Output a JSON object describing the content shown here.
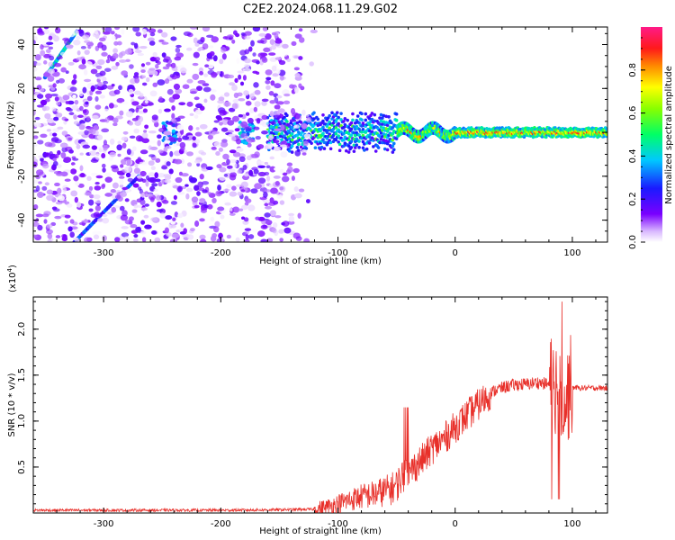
{
  "title": "C2E2.2024.068.11.29.G02",
  "chart_data": [
    {
      "type": "heatmap",
      "title": "C2E2.2024.068.11.29.G02",
      "xlabel": "Height of straight line (km)",
      "ylabel": "Frequency (Hz)",
      "xlim": [
        -360,
        130
      ],
      "ylim": [
        -50,
        48
      ],
      "x_ticks": [
        -300,
        -200,
        -100,
        0,
        100
      ],
      "y_ticks": [
        -40,
        -20,
        0,
        20,
        40
      ],
      "colorbar": {
        "label": "Normalized spectral amplitude",
        "range": [
          0.0,
          1.0
        ],
        "ticks": [
          0.0,
          0.2,
          0.4,
          0.6,
          0.8
        ],
        "colormap": "rainbow (white-purple-blue-cyan-green-yellow-red-magenta)"
      },
      "features": [
        {
          "kind": "carrier-line",
          "freq_hz": 0,
          "x_from": -160,
          "x_to": 130,
          "amplitude": 0.85
        },
        {
          "kind": "diagonal-streak",
          "x_from": -350,
          "x_to": -323,
          "freq_from": 25,
          "freq_to": 46,
          "amplitude": 0.4
        },
        {
          "kind": "diagonal-streak",
          "x_from": -325,
          "x_to": -270,
          "freq_from": -50,
          "freq_to": -20,
          "amplitude": 0.25
        },
        {
          "kind": "blob",
          "x": -243,
          "freq_hz": 0,
          "amplitude": 0.3
        },
        {
          "kind": "blob",
          "x": -178,
          "freq_hz": 0,
          "amplitude": 0.35
        },
        {
          "kind": "noise-field",
          "x_from": -360,
          "x_to": -120,
          "freq_from": -50,
          "freq_to": 48,
          "amplitude": 0.15
        }
      ]
    },
    {
      "type": "line",
      "title": "",
      "xlabel": "Height of straight line (km)",
      "ylabel": "SNR (10 * v/v)",
      "scale_label": "(x10",
      "scale_exponent": "4",
      "scale_suffix": ")",
      "xlim": [
        -360,
        130
      ],
      "ylim": [
        0,
        2.35
      ],
      "x_ticks": [
        -300,
        -200,
        -100,
        0,
        100
      ],
      "y_ticks": [
        0.5,
        1.0,
        1.5,
        2.0
      ],
      "y_ticklabels": [
        "0.5",
        "1.0",
        "1.5",
        "2.0"
      ],
      "series": [
        {
          "color": "#e8302a",
          "x": [
            -360,
            -300,
            -250,
            -200,
            -150,
            -120,
            -110,
            -100,
            -90,
            -80,
            -70,
            -60,
            -55,
            -50,
            -45,
            -40,
            -35,
            -30,
            -25,
            -20,
            -15,
            -10,
            -5,
            0,
            5,
            10,
            15,
            20,
            25,
            30,
            35,
            40,
            45,
            50,
            55,
            60,
            65,
            70,
            75,
            80,
            85,
            88,
            92,
            95,
            98,
            100,
            105,
            110,
            115,
            120,
            125,
            130
          ],
          "y": [
            0.03,
            0.03,
            0.03,
            0.03,
            0.035,
            0.04,
            0.06,
            0.1,
            0.14,
            0.18,
            0.2,
            0.24,
            0.26,
            0.3,
            0.4,
            0.45,
            0.5,
            0.56,
            0.62,
            0.7,
            0.75,
            0.8,
            0.87,
            0.93,
            1.0,
            1.06,
            1.12,
            1.18,
            1.24,
            1.3,
            1.34,
            1.36,
            1.38,
            1.39,
            1.4,
            1.4,
            1.41,
            1.42,
            1.41,
            1.4,
            1.38,
            1.45,
            1.3,
            1.2,
            1.4,
            1.37,
            1.36,
            1.36,
            1.36,
            1.36,
            1.36,
            1.36
          ]
        }
      ]
    }
  ]
}
